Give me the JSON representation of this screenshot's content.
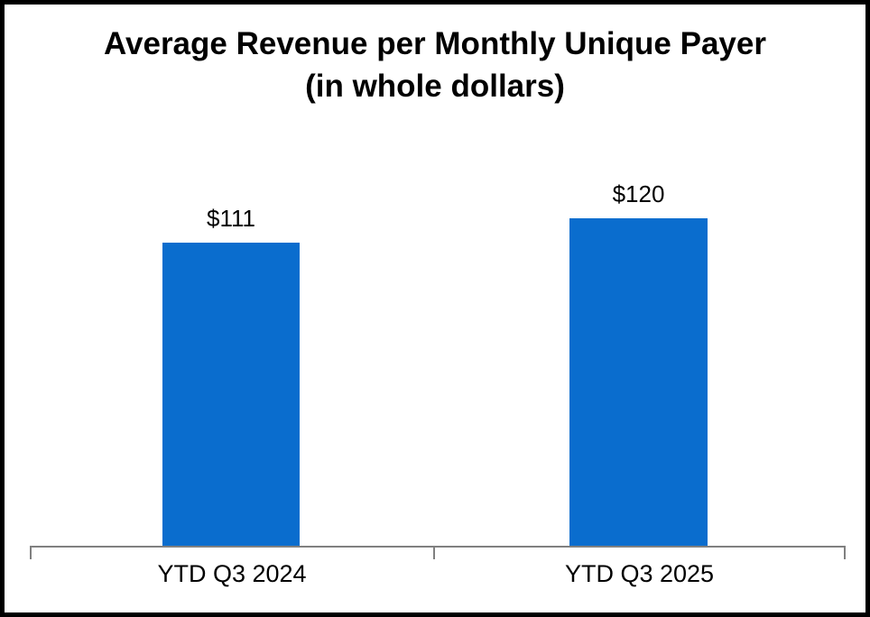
{
  "chart_data": {
    "type": "bar",
    "title": "Average Revenue per Monthly Unique Payer",
    "subtitle": "(in whole dollars)",
    "categories": [
      "YTD Q3 2024",
      "YTD Q3 2025"
    ],
    "values": [
      111,
      120
    ],
    "data_labels": [
      "$111",
      "$120"
    ],
    "series": [
      {
        "name": "Average Revenue per Monthly Unique Payer",
        "values": [
          111,
          120
        ]
      }
    ],
    "xlabel": "",
    "ylabel": "",
    "ylim": [
      0,
      135
    ],
    "grid": false,
    "legend": false,
    "bar_color": "#0a6dce",
    "axis_color": "#808080",
    "frame_color": "#000000"
  }
}
